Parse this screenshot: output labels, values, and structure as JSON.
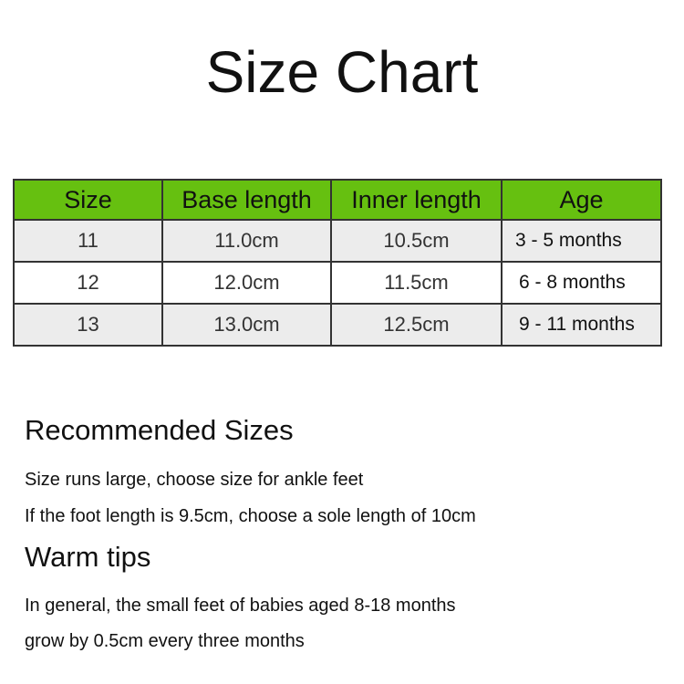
{
  "title": "Size Chart",
  "table": {
    "headers": [
      "Size",
      "Base length",
      "Inner length",
      "Age"
    ],
    "rows": [
      [
        "11",
        "11.0cm",
        "10.5cm",
        "3 - 5 months"
      ],
      [
        "12",
        "12.0cm",
        "11.5cm",
        "6 - 8 months"
      ],
      [
        "13",
        "13.0cm",
        "12.5cm",
        "9 - 11 months"
      ]
    ],
    "header_color": "#66c010"
  },
  "recommended": {
    "heading": "Recommended Sizes",
    "lines": [
      "Size runs large, choose size for ankle feet",
      "If the foot length is 9.5cm, choose a sole length of 10cm"
    ]
  },
  "tips": {
    "heading": "Warm tips",
    "lines": [
      "In general, the small feet of babies aged 8-18 months",
      "grow by 0.5cm every three months"
    ]
  }
}
